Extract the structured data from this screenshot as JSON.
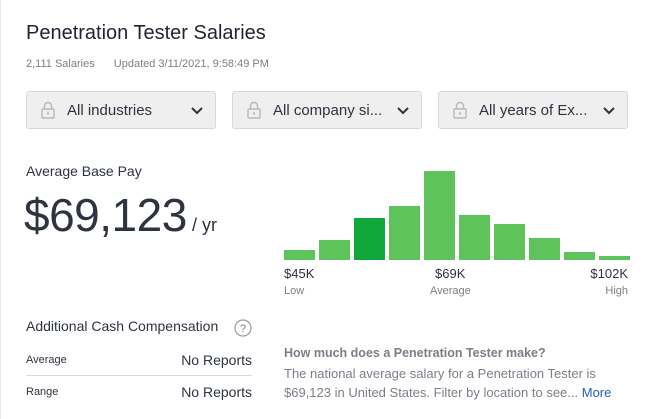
{
  "header": {
    "title": "Penetration Tester Salaries",
    "salaries_count": "2,111 Salaries",
    "updated": "Updated 3/11/2021, 9:58:49 PM"
  },
  "filters": [
    {
      "label": "All industries",
      "icon": "lock-icon"
    },
    {
      "label": "All company si...",
      "icon": "lock-icon"
    },
    {
      "label": "All years of Ex...",
      "icon": "lock-icon"
    }
  ],
  "average": {
    "label": "Average Base Pay",
    "value": "$69,123",
    "unit": "/ yr"
  },
  "histogram": {
    "colors": {
      "normal": "#5ec35a",
      "highlight": "#10a83b"
    },
    "relative_heights": [
      0.11,
      0.22,
      0.47,
      0.6,
      0.99,
      0.5,
      0.4,
      0.24,
      0.09,
      0.05
    ],
    "highlight_index": 2,
    "ticks": [
      {
        "value": "$45K",
        "label": "Low"
      },
      {
        "value": "$69K",
        "label": "Average"
      },
      {
        "value": "$102K",
        "label": "High"
      }
    ]
  },
  "additional": {
    "label": "Additional Cash Compensation",
    "rows": [
      {
        "label": "Average",
        "value": "No Reports"
      },
      {
        "label": "Range",
        "value": "No Reports"
      }
    ]
  },
  "faq": {
    "question": "How much does a Penetration Tester make?",
    "answer": "The national average salary for a Penetration Tester is $69,123 in United States. Filter by location to see...",
    "more": "More"
  }
}
